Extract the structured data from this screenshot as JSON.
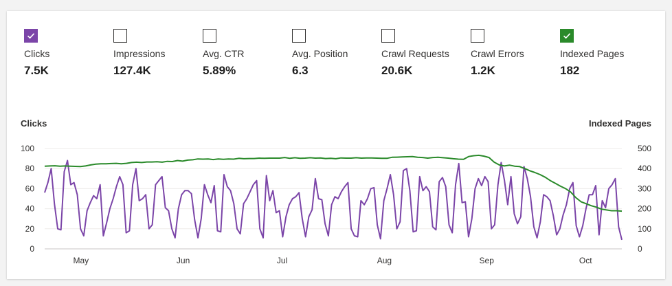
{
  "metrics": [
    {
      "label": "Clicks",
      "value": "7.5K",
      "checked": true,
      "color": "#7b45a8"
    },
    {
      "label": "Impressions",
      "value": "127.4K",
      "checked": false,
      "color": ""
    },
    {
      "label": "Avg. CTR",
      "value": "5.89%",
      "checked": false,
      "color": ""
    },
    {
      "label": "Avg. Position",
      "value": "6.3",
      "checked": false,
      "color": ""
    },
    {
      "label": "Crawl Requests",
      "value": "20.6K",
      "checked": false,
      "color": ""
    },
    {
      "label": "Crawl Errors",
      "value": "1.2K",
      "checked": false,
      "color": ""
    },
    {
      "label": "Indexed Pages",
      "value": "182",
      "checked": true,
      "color": "#2a8a2a"
    }
  ],
  "icons": {
    "checked": "checkmark-icon"
  },
  "chart_data": {
    "type": "line",
    "ylabel": "Clicks",
    "y2label": "Indexed Pages",
    "ylim": [
      0,
      100
    ],
    "y2lim": [
      0,
      500
    ],
    "yticks": [
      0,
      20,
      40,
      60,
      80,
      100
    ],
    "y2ticks": [
      0,
      100,
      200,
      300,
      400,
      500
    ],
    "xtick_labels": [
      "May",
      "Jun",
      "Jul",
      "Aug",
      "Sep",
      "Oct"
    ],
    "x_start_day": 0,
    "x_end_day": 175,
    "xtick_days": [
      11,
      42,
      72,
      103,
      134,
      164
    ],
    "series": [
      {
        "name": "Clicks",
        "axis": "left",
        "color": "#7b45a8",
        "values": [
          56,
          66,
          80,
          45,
          20,
          19,
          77,
          88,
          64,
          66,
          54,
          20,
          13,
          38,
          46,
          53,
          50,
          64,
          13,
          26,
          40,
          50,
          62,
          72,
          64,
          16,
          18,
          64,
          80,
          48,
          50,
          54,
          20,
          24,
          64,
          68,
          72,
          41,
          38,
          20,
          11,
          40,
          54,
          58,
          58,
          55,
          29,
          11,
          30,
          64,
          54,
          46,
          63,
          18,
          17,
          74,
          62,
          58,
          45,
          20,
          15,
          45,
          50,
          57,
          64,
          68,
          20,
          11,
          73,
          48,
          58,
          36,
          38,
          12,
          32,
          44,
          50,
          52,
          56,
          30,
          12,
          32,
          39,
          70,
          50,
          49,
          25,
          13,
          44,
          52,
          50,
          57,
          62,
          66,
          20,
          13,
          12,
          48,
          44,
          50,
          60,
          61,
          24,
          10,
          48,
          60,
          74,
          54,
          20,
          27,
          78,
          80,
          58,
          17,
          18,
          72,
          58,
          62,
          57,
          22,
          19,
          67,
          71,
          62,
          24,
          16,
          64,
          85,
          46,
          47,
          12,
          30,
          60,
          70,
          63,
          72,
          67,
          20,
          24,
          64,
          86,
          68,
          44,
          72,
          35,
          25,
          32,
          82,
          70,
          52,
          22,
          11,
          27,
          54,
          52,
          48,
          33,
          14,
          20,
          34,
          44,
          60,
          66,
          23,
          12,
          23,
          40,
          54,
          54,
          63,
          14,
          48,
          41,
          60,
          64,
          70,
          22,
          9
        ]
      },
      {
        "name": "Indexed Pages",
        "axis": "right",
        "color": "#2a8a2a",
        "values": [
          412,
          413,
          414,
          412,
          413,
          412,
          411,
          410,
          413,
          418,
          422,
          424,
          424,
          425,
          426,
          424,
          426,
          430,
          432,
          430,
          433,
          433,
          434,
          432,
          436,
          435,
          440,
          437,
          442,
          444,
          448,
          447,
          448,
          445,
          448,
          446,
          448,
          447,
          451,
          449,
          450,
          450,
          452,
          451,
          452,
          452,
          452,
          455,
          451,
          454,
          451,
          452,
          454,
          452,
          453,
          450,
          451,
          449,
          453,
          452,
          452,
          454,
          452,
          453,
          453,
          452,
          451,
          451,
          456,
          457,
          458,
          459,
          460,
          456,
          455,
          452,
          455,
          456,
          454,
          452,
          449,
          447,
          446,
          460,
          464,
          466,
          462,
          455,
          432,
          418,
          413,
          417,
          412,
          410,
          400,
          389,
          380,
          370,
          357,
          340,
          326,
          312,
          300,
          283,
          255,
          235,
          225,
          215,
          208,
          198,
          194,
          190,
          190,
          188
        ]
      }
    ]
  }
}
